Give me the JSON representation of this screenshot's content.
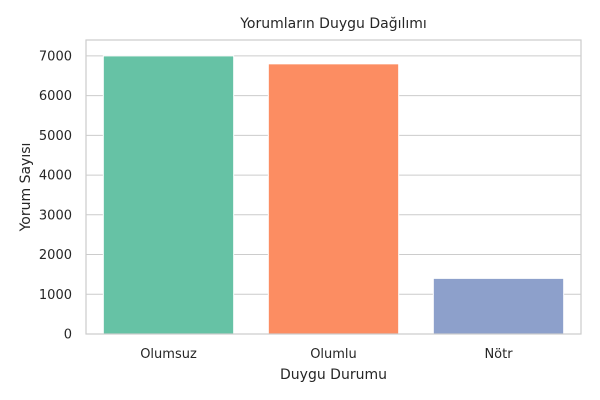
{
  "chart_data": {
    "type": "bar",
    "title": "Yorumların Duygu Dağılımı",
    "xlabel": "Duygu Durumu",
    "ylabel": "Yorum Sayısı",
    "categories": [
      "Olumsuz",
      "Olumlu",
      "Nötr"
    ],
    "values": [
      7000,
      6800,
      1400
    ],
    "colors": [
      "#66c2a5",
      "#fc8d62",
      "#8da0cb"
    ],
    "ylim": [
      0,
      7400
    ],
    "yticks": [
      0,
      1000,
      2000,
      3000,
      4000,
      5000,
      6000,
      7000
    ],
    "grid": true
  }
}
